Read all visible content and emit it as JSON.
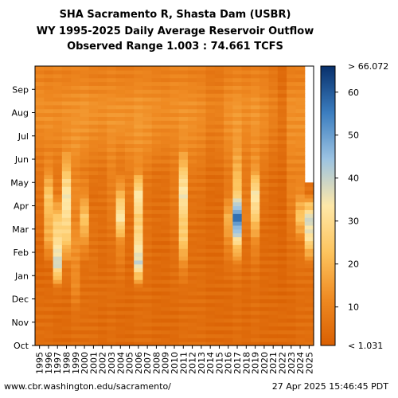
{
  "chart_data": {
    "type": "heatmap",
    "title": [
      "SHA Sacramento R, Shasta Dam (USBR)",
      "WY 1995-2025 Daily Average Reservoir Outflow",
      "Observed Range 1.003 : 74.661 TCFS"
    ],
    "xlabel": "",
    "ylabel": "",
    "x": [
      "1995",
      "1996",
      "1997",
      "1998",
      "1999",
      "2000",
      "2001",
      "2002",
      "2003",
      "2004",
      "2005",
      "2006",
      "2007",
      "2008",
      "2009",
      "2010",
      "2011",
      "2012",
      "2013",
      "2014",
      "2015",
      "2016",
      "2017",
      "2018",
      "2019",
      "2020",
      "2021",
      "2022",
      "2023",
      "2024",
      "2025"
    ],
    "y": [
      "Oct",
      "Nov",
      "Dec",
      "Jan",
      "Feb",
      "Mar",
      "Apr",
      "May",
      "Jun",
      "Jul",
      "Aug",
      "Sep"
    ],
    "colorbar": {
      "ticks": [
        10,
        20,
        30,
        40,
        50,
        60
      ],
      "top_label": "> 66.072",
      "bottom_label": "< 1.031",
      "min": 1.031,
      "max": 66.072,
      "colors": [
        "#d95f02",
        "#ef8a22",
        "#fdc45e",
        "#fee8a8",
        "#9cc3e2",
        "#3b7dbf",
        "#08306b"
      ]
    },
    "monthly_flow_tcfs": [
      [
        5,
        5,
        4,
        3,
        4,
        5,
        6,
        7,
        9,
        12,
        13,
        10
      ],
      [
        5,
        5,
        4,
        4,
        18,
        20,
        25,
        12,
        10,
        13,
        12,
        9
      ],
      [
        4,
        4,
        6,
        40,
        30,
        25,
        8,
        7,
        10,
        12,
        12,
        10
      ],
      [
        4,
        4,
        5,
        8,
        25,
        30,
        35,
        22,
        12,
        13,
        13,
        9
      ],
      [
        5,
        6,
        12,
        12,
        14,
        10,
        12,
        10,
        14,
        14,
        13,
        10
      ],
      [
        5,
        5,
        5,
        5,
        14,
        25,
        12,
        8,
        12,
        14,
        14,
        10
      ],
      [
        5,
        5,
        5,
        6,
        6,
        6,
        5,
        7,
        10,
        13,
        13,
        9
      ],
      [
        4,
        4,
        5,
        4,
        5,
        5,
        6,
        6,
        10,
        12,
        13,
        9
      ],
      [
        5,
        5,
        5,
        5,
        6,
        8,
        9,
        10,
        12,
        14,
        13,
        10
      ],
      [
        4,
        4,
        5,
        8,
        12,
        35,
        20,
        7,
        10,
        14,
        13,
        9
      ],
      [
        4,
        4,
        4,
        4,
        5,
        5,
        8,
        9,
        12,
        13,
        13,
        9
      ],
      [
        5,
        5,
        5,
        40,
        30,
        25,
        35,
        12,
        13,
        15,
        14,
        10
      ],
      [
        5,
        5,
        5,
        5,
        6,
        6,
        6,
        8,
        12,
        14,
        13,
        10
      ],
      [
        4,
        4,
        4,
        4,
        4,
        5,
        5,
        6,
        10,
        12,
        13,
        9
      ],
      [
        4,
        4,
        4,
        4,
        4,
        5,
        5,
        6,
        9,
        12,
        12,
        9
      ],
      [
        4,
        4,
        5,
        5,
        6,
        7,
        8,
        8,
        10,
        12,
        13,
        10
      ],
      [
        5,
        5,
        5,
        12,
        25,
        25,
        35,
        25,
        12,
        14,
        13,
        10
      ],
      [
        5,
        5,
        5,
        5,
        5,
        6,
        6,
        8,
        11,
        13,
        13,
        9
      ],
      [
        5,
        5,
        5,
        5,
        5,
        5,
        6,
        7,
        10,
        12,
        12,
        9
      ],
      [
        4,
        4,
        4,
        4,
        4,
        4,
        4,
        5,
        7,
        9,
        10,
        7
      ],
      [
        4,
        4,
        4,
        4,
        4,
        4,
        4,
        5,
        8,
        9,
        10,
        7
      ],
      [
        4,
        4,
        4,
        6,
        12,
        20,
        8,
        8,
        11,
        13,
        13,
        9
      ],
      [
        5,
        5,
        5,
        8,
        30,
        60,
        25,
        20,
        15,
        15,
        14,
        10
      ],
      [
        4,
        4,
        4,
        5,
        5,
        10,
        8,
        8,
        10,
        12,
        13,
        9
      ],
      [
        5,
        5,
        5,
        7,
        12,
        25,
        35,
        15,
        12,
        14,
        14,
        10
      ],
      [
        4,
        4,
        4,
        4,
        4,
        5,
        6,
        7,
        10,
        12,
        12,
        9
      ],
      [
        4,
        4,
        4,
        4,
        4,
        4,
        4,
        5,
        7,
        9,
        10,
        7
      ],
      [
        4,
        4,
        3,
        3,
        3,
        3,
        3,
        4,
        5,
        6,
        6,
        4
      ],
      [
        4,
        4,
        4,
        5,
        6,
        8,
        10,
        10,
        12,
        13,
        13,
        9
      ],
      [
        5,
        5,
        5,
        6,
        8,
        25,
        12,
        10,
        12,
        13,
        13,
        9
      ],
      [
        5,
        5,
        5,
        6,
        30,
        40,
        6
      ]
    ]
  },
  "footer": {
    "url": "www.cbr.washington.edu/sacramento/",
    "timestamp": "27 Apr 2025 15:46:45 PDT"
  }
}
